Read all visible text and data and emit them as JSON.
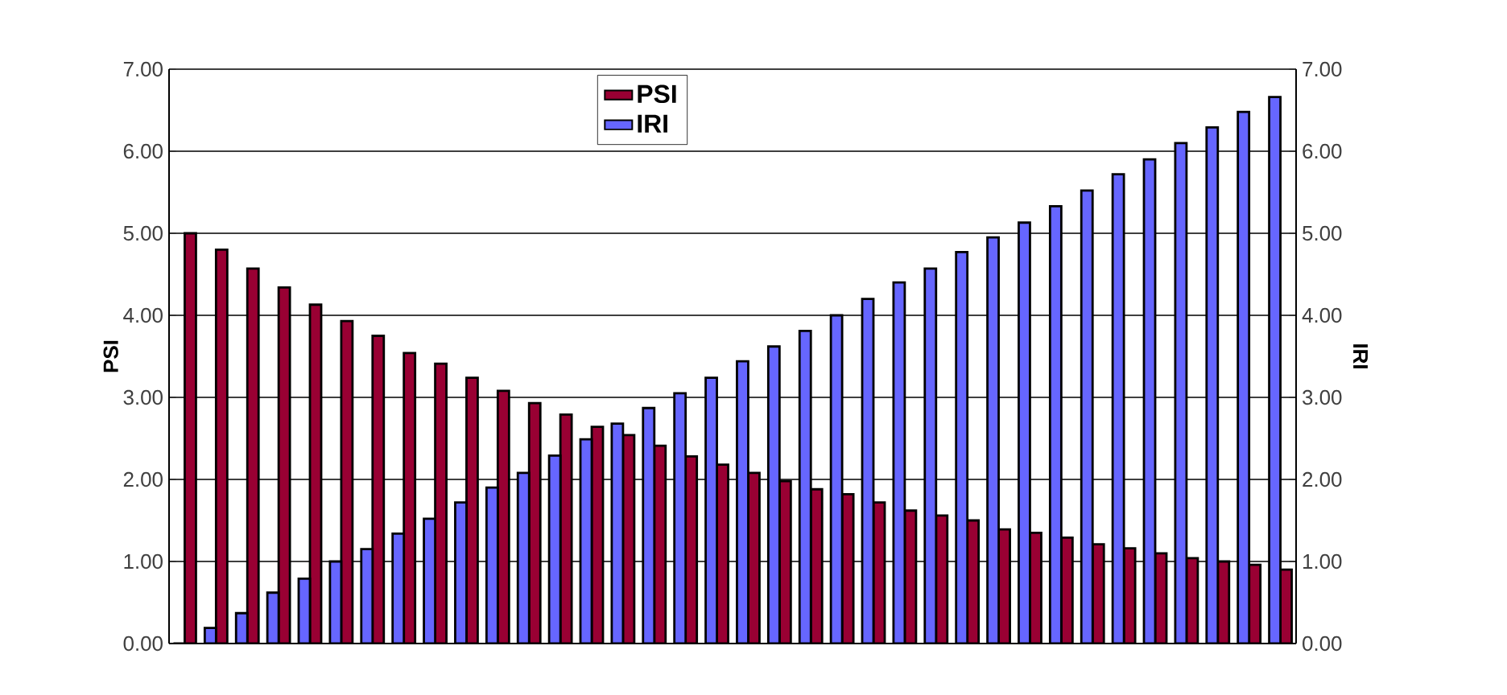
{
  "chart_data": {
    "type": "bar",
    "ylabel": "PSI",
    "y2label": "IRI",
    "categories": [
      null,
      null,
      null,
      null,
      null,
      null,
      null,
      null,
      null,
      null,
      null,
      null,
      null,
      null,
      null,
      null,
      null,
      null,
      null,
      null,
      null,
      null,
      null,
      null,
      null,
      null,
      null,
      null,
      null,
      null,
      null,
      null,
      null,
      null,
      null,
      null
    ],
    "series": [
      {
        "name": "PSI",
        "color": "#990033",
        "values": [
          5.0,
          4.8,
          4.57,
          4.34,
          4.13,
          3.93,
          3.75,
          3.54,
          3.41,
          3.24,
          3.08,
          2.93,
          2.79,
          2.64,
          2.54,
          2.41,
          2.28,
          2.18,
          2.08,
          1.98,
          1.88,
          1.82,
          1.72,
          1.62,
          1.56,
          1.5,
          1.39,
          1.35,
          1.29,
          1.21,
          1.16,
          1.1,
          1.04,
          1.0,
          0.96,
          0.9
        ]
      },
      {
        "name": "IRI",
        "color": "#6666ff",
        "axis": "y2",
        "values": [
          0,
          0.19,
          0.37,
          0.62,
          0.79,
          1.0,
          1.15,
          1.34,
          1.52,
          1.72,
          1.9,
          2.08,
          2.29,
          2.49,
          2.68,
          2.87,
          3.05,
          3.24,
          3.44,
          3.62,
          3.81,
          4.0,
          4.2,
          4.4,
          4.57,
          4.77,
          4.95,
          5.13,
          5.33,
          5.52,
          5.72,
          5.9,
          6.1,
          6.29,
          6.48,
          6.66
        ]
      }
    ],
    "ylim": [
      0,
      7
    ],
    "yticks": [
      {
        "value": 0,
        "label": "0.00"
      },
      {
        "value": 1,
        "label": "1.00"
      },
      {
        "value": 2,
        "label": "2.00"
      },
      {
        "value": 3,
        "label": "3.00"
      },
      {
        "value": 4,
        "label": "4.00"
      },
      {
        "value": 5,
        "label": "5.00"
      },
      {
        "value": 6,
        "label": "6.00"
      },
      {
        "value": 7,
        "label": "7.00"
      }
    ],
    "y2lim": [
      0,
      7
    ],
    "y2ticks": [
      {
        "value": 0,
        "label": "0.00"
      },
      {
        "value": 1,
        "label": "1.00"
      },
      {
        "value": 2,
        "label": "2.00"
      },
      {
        "value": 3,
        "label": "3.00"
      },
      {
        "value": 4,
        "label": "4.00"
      },
      {
        "value": 5,
        "label": "5.00"
      },
      {
        "value": 6,
        "label": "6.00"
      },
      {
        "value": 7,
        "label": "7.00"
      }
    ],
    "grid": "y",
    "legend": "top"
  }
}
